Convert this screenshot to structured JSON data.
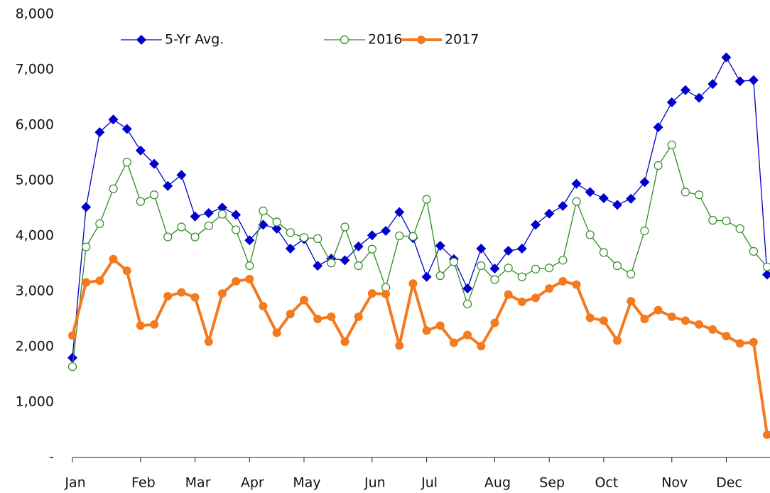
{
  "chart_data": {
    "type": "line",
    "categories": [
      "Jan",
      null,
      null,
      null,
      null,
      "Feb",
      null,
      null,
      null,
      "Mar",
      null,
      null,
      null,
      "Apr",
      null,
      null,
      null,
      "May",
      null,
      null,
      null,
      null,
      "Jun",
      null,
      null,
      null,
      "Jul",
      null,
      null,
      null,
      null,
      "Aug",
      null,
      null,
      null,
      "Sep",
      null,
      null,
      null,
      "Oct",
      null,
      null,
      null,
      null,
      "Nov",
      null,
      null,
      null,
      "Dec",
      null,
      null,
      null
    ],
    "series": [
      {
        "name": "5-Yr Avg.",
        "color": "#0000cc",
        "marker": "diamond",
        "values": [
          1800,
          4520,
          5870,
          6100,
          5930,
          5540,
          5300,
          4900,
          5100,
          4350,
          4410,
          4510,
          4380,
          3920,
          4200,
          4130,
          3770,
          3940,
          3460,
          3590,
          3560,
          3810,
          4010,
          4090,
          4430,
          3960,
          3260,
          3820,
          3580,
          3050,
          3770,
          3410,
          3730,
          3770,
          4200,
          4400,
          4540,
          4940,
          4790,
          4680,
          4560,
          4670,
          4970,
          5960,
          6410,
          6630,
          6490,
          6740,
          7220,
          6790,
          6810,
          3300
        ]
      },
      {
        "name": "2016",
        "color": "#2e8b22",
        "marker": "open-circle",
        "values": [
          1640,
          3800,
          4220,
          4850,
          5330,
          4620,
          4740,
          3980,
          4160,
          3980,
          4180,
          4390,
          4110,
          3460,
          4450,
          4250,
          4060,
          3970,
          3950,
          3510,
          4160,
          3460,
          3760,
          3070,
          4000,
          3990,
          4660,
          3280,
          3530,
          2770,
          3460,
          3210,
          3420,
          3260,
          3400,
          3420,
          3560,
          4620,
          4020,
          3700,
          3460,
          3310,
          4090,
          5270,
          5640,
          4790,
          4740,
          4280,
          4270,
          4130,
          3720,
          3440
        ]
      },
      {
        "name": "2017",
        "color": "#f47a20",
        "marker": "circle",
        "values": [
          2200,
          3160,
          3190,
          3580,
          3370,
          2380,
          2400,
          2910,
          2980,
          2890,
          2090,
          2960,
          3180,
          3220,
          2730,
          2250,
          2590,
          2840,
          2500,
          2540,
          2090,
          2540,
          2960,
          2950,
          2020,
          3140,
          2290,
          2380,
          2070,
          2210,
          2010,
          2430,
          2940,
          2810,
          2880,
          3050,
          3180,
          3120,
          2520,
          2470,
          2110,
          2820,
          2500,
          2660,
          2540,
          2470,
          2400,
          2310,
          2190,
          2060,
          2080,
          410
        ]
      }
    ],
    "ylim": [
      0,
      8000
    ],
    "yticks": [
      {
        "value": 0,
        "label": "-"
      },
      {
        "value": 1000,
        "label": "1,000"
      },
      {
        "value": 2000,
        "label": "2,000"
      },
      {
        "value": 3000,
        "label": "3,000"
      },
      {
        "value": 4000,
        "label": "4,000"
      },
      {
        "value": 5000,
        "label": "5,000"
      },
      {
        "value": 6000,
        "label": "6,000"
      },
      {
        "value": 7000,
        "label": "7,000"
      },
      {
        "value": 8000,
        "label": "8,000"
      }
    ],
    "grid": false,
    "legend": "top"
  }
}
